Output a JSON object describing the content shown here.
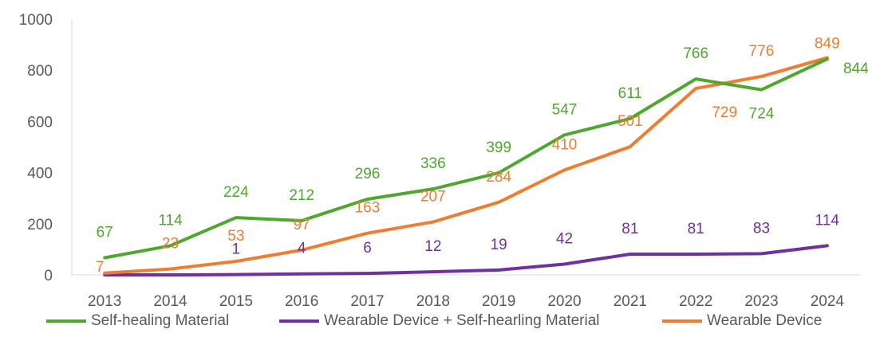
{
  "chart_data": {
    "type": "line",
    "x": [
      "2013",
      "2014",
      "2015",
      "2016",
      "2017",
      "2018",
      "2019",
      "2020",
      "2021",
      "2022",
      "2023",
      "2024"
    ],
    "ylim": [
      0,
      1000
    ],
    "yticks": [
      "0",
      "200",
      "400",
      "600",
      "800",
      "1000"
    ],
    "grid": false,
    "legend_position": "bottom",
    "series": [
      {
        "name": "Self-healing Material",
        "color": "#4ea72e",
        "values": [
          67,
          114,
          224,
          212,
          296,
          336,
          399,
          547,
          611,
          766,
          724,
          844
        ],
        "labels": [
          "67",
          "114",
          "224",
          "212",
          "296",
          "336",
          "399",
          "547",
          "611",
          "766",
          "724",
          "844"
        ]
      },
      {
        "name": "Wearable Device + Self-hearling Material",
        "color": "#7030a0",
        "values": [
          0,
          0,
          1,
          4,
          6,
          12,
          19,
          42,
          81,
          81,
          83,
          114
        ],
        "labels": [
          "",
          "",
          "1",
          "4",
          "6",
          "12",
          "19",
          "42",
          "81",
          "81",
          "83",
          "114"
        ]
      },
      {
        "name": "Wearable Device",
        "color": "#ed7d31",
        "values": [
          7,
          23,
          53,
          97,
          163,
          207,
          284,
          410,
          501,
          729,
          776,
          849
        ],
        "labels": [
          "7",
          "23",
          "53",
          "97",
          "163",
          "207",
          "284",
          "410",
          "501",
          "729",
          "776",
          "849"
        ]
      }
    ]
  }
}
